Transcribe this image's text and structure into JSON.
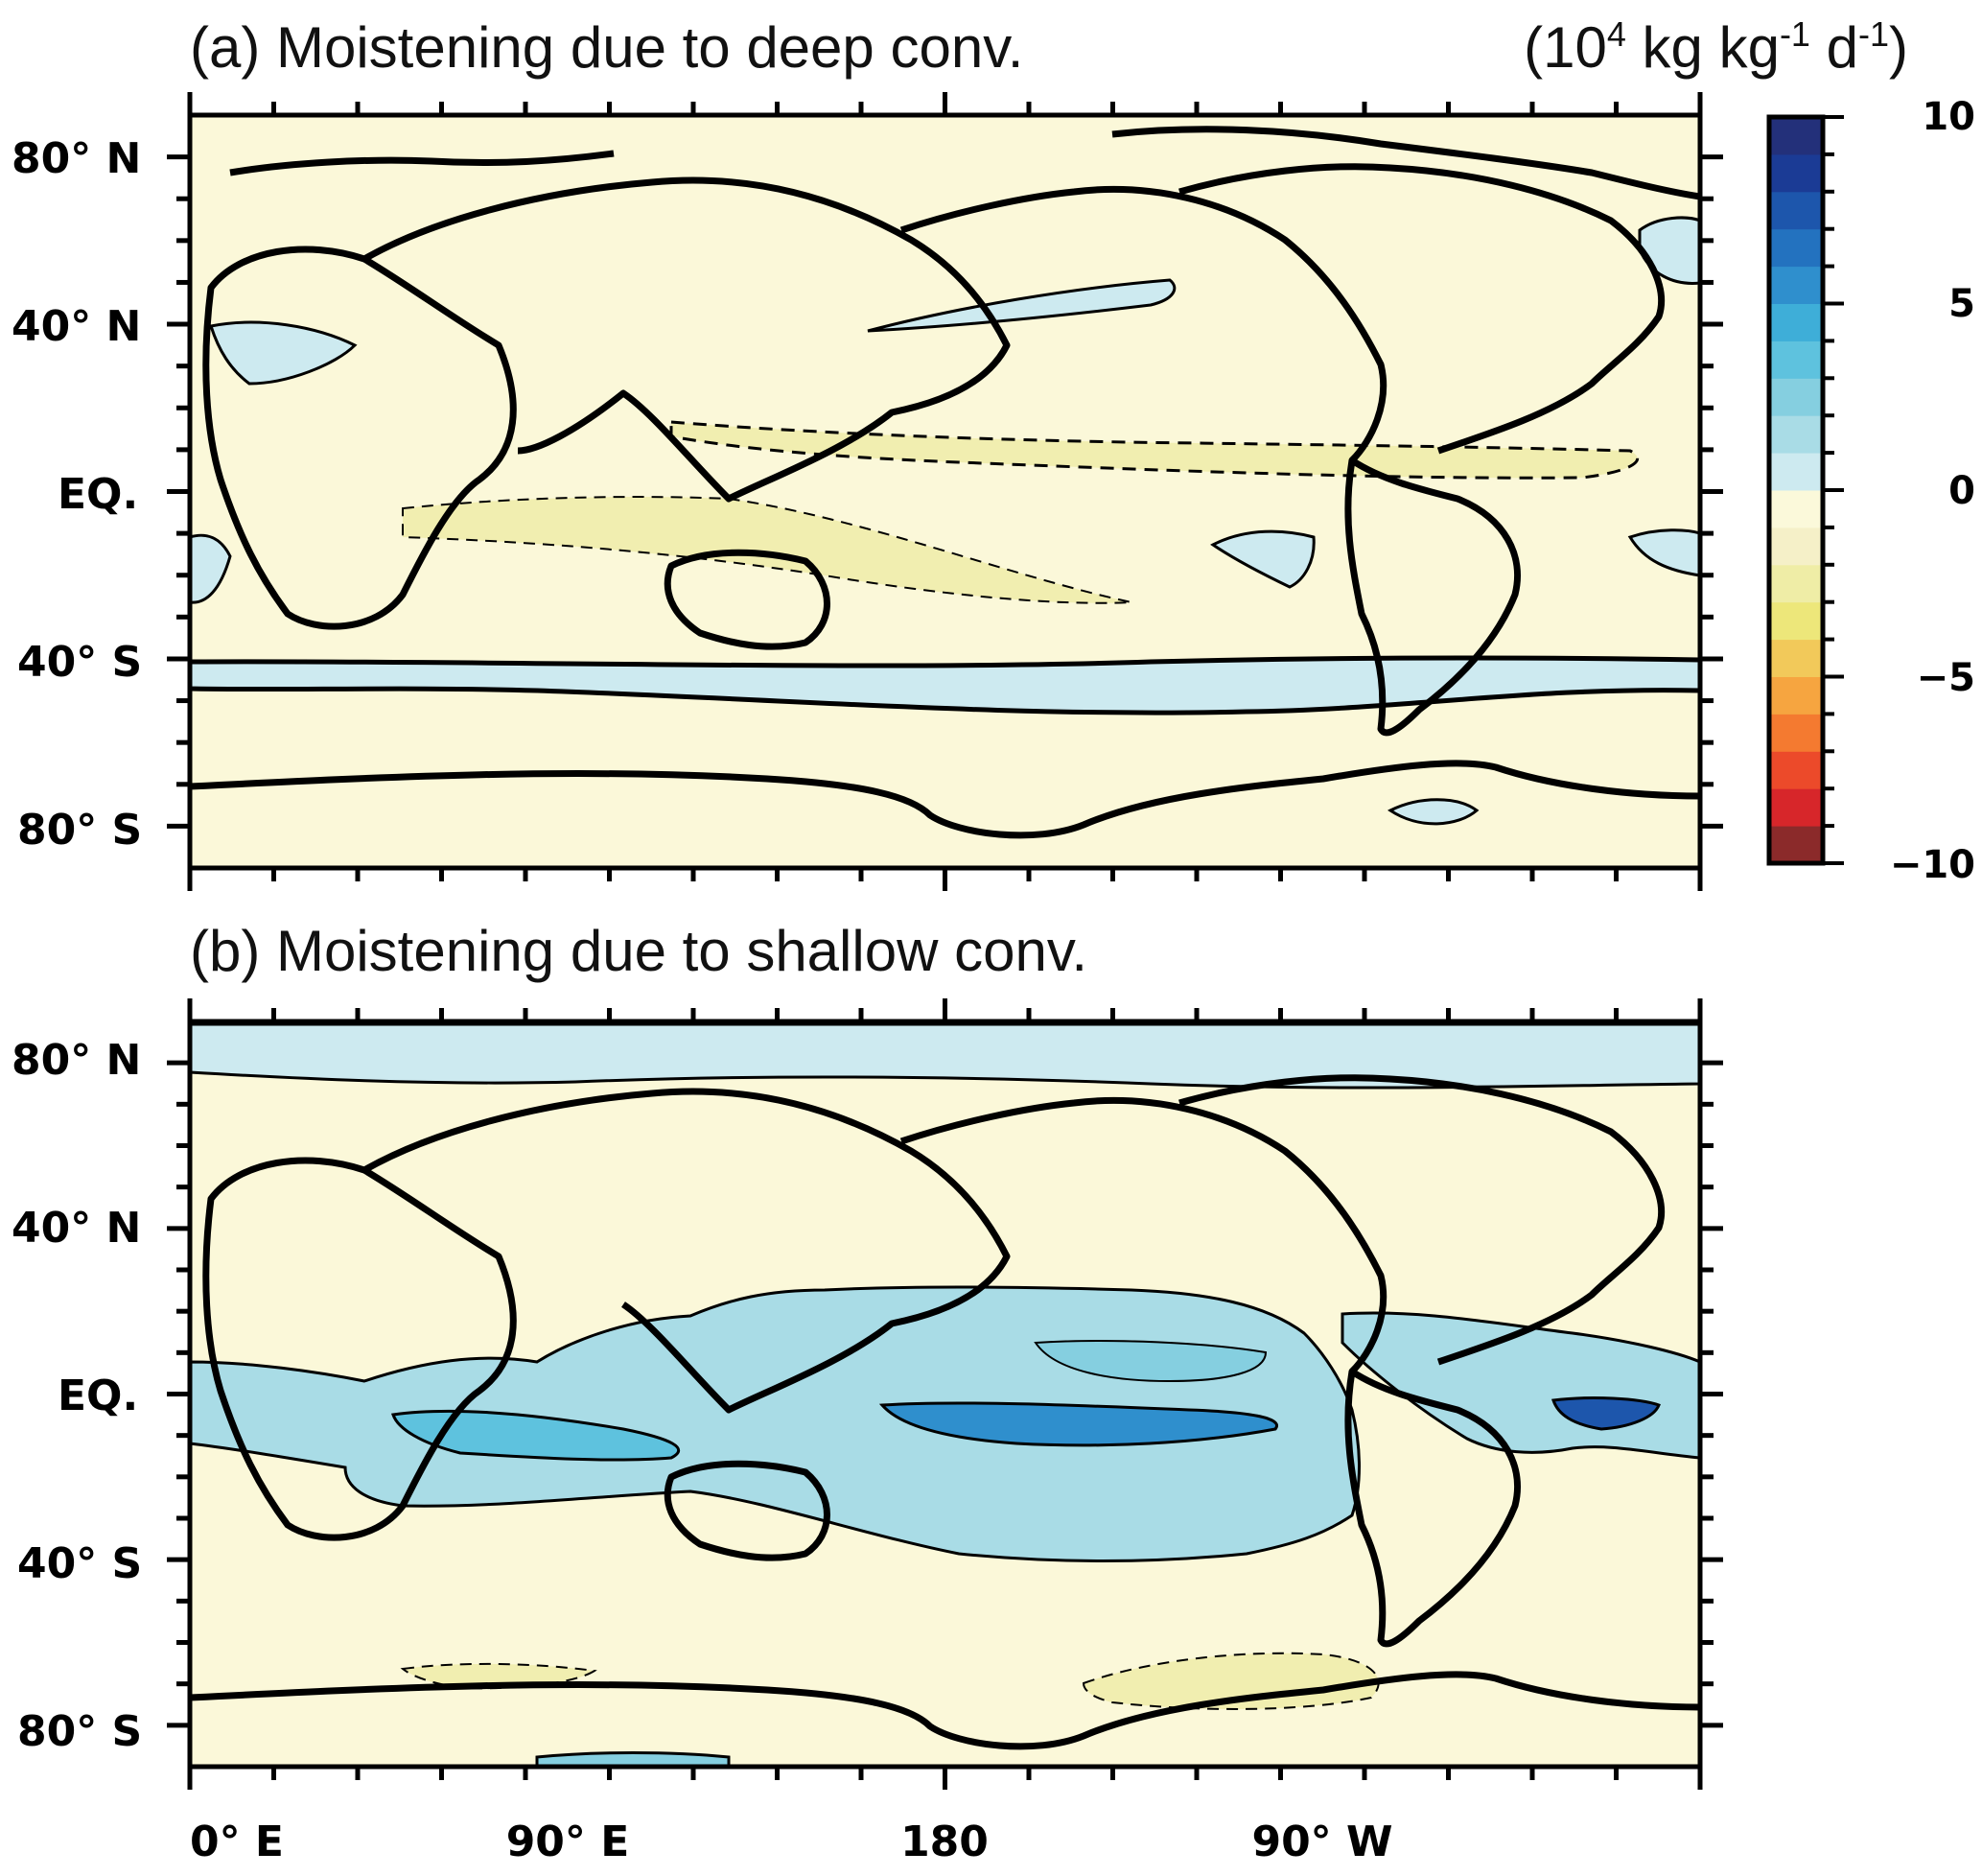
{
  "figure": {
    "units_prefix": "(10",
    "units_exp": "4",
    "units_mid": " kg kg",
    "units_exp2": "-1",
    "units_mid2": " d",
    "units_exp3": "-1",
    "units_suffix": ")"
  },
  "panels": [
    {
      "title": "(a) Moistening due to deep conv."
    },
    {
      "title": "(b) Moistening due to shallow conv."
    }
  ],
  "axes": {
    "lat_labels": [
      "80° N",
      "40° N",
      "EQ.",
      "40° S",
      "80° S"
    ],
    "lon_labels": [
      "0° E",
      "90° E",
      "180",
      "90° W"
    ]
  },
  "colorbar": {
    "tick_labels": [
      "10",
      "5",
      "0",
      "−5",
      "−10"
    ],
    "range": [
      -10,
      10
    ],
    "colors": [
      "#8b2a2a",
      "#d7262a",
      "#ec4a2a",
      "#f47a30",
      "#f6a540",
      "#f2c95a",
      "#ede77a",
      "#efeda6",
      "#f5f0c8",
      "#fbf9da",
      "#cdeaf0",
      "#a9dce6",
      "#85cfe0",
      "#5ec2de",
      "#3eaed8",
      "#2f8fcd",
      "#2372bf",
      "#1d56ac",
      "#1b3b95",
      "#23307a"
    ]
  },
  "colors": {
    "land_background": "#fbf8d9",
    "positive_fill": "#cdeaf0",
    "negative_fill": "#f1eeb0",
    "coast": "#000000"
  }
}
